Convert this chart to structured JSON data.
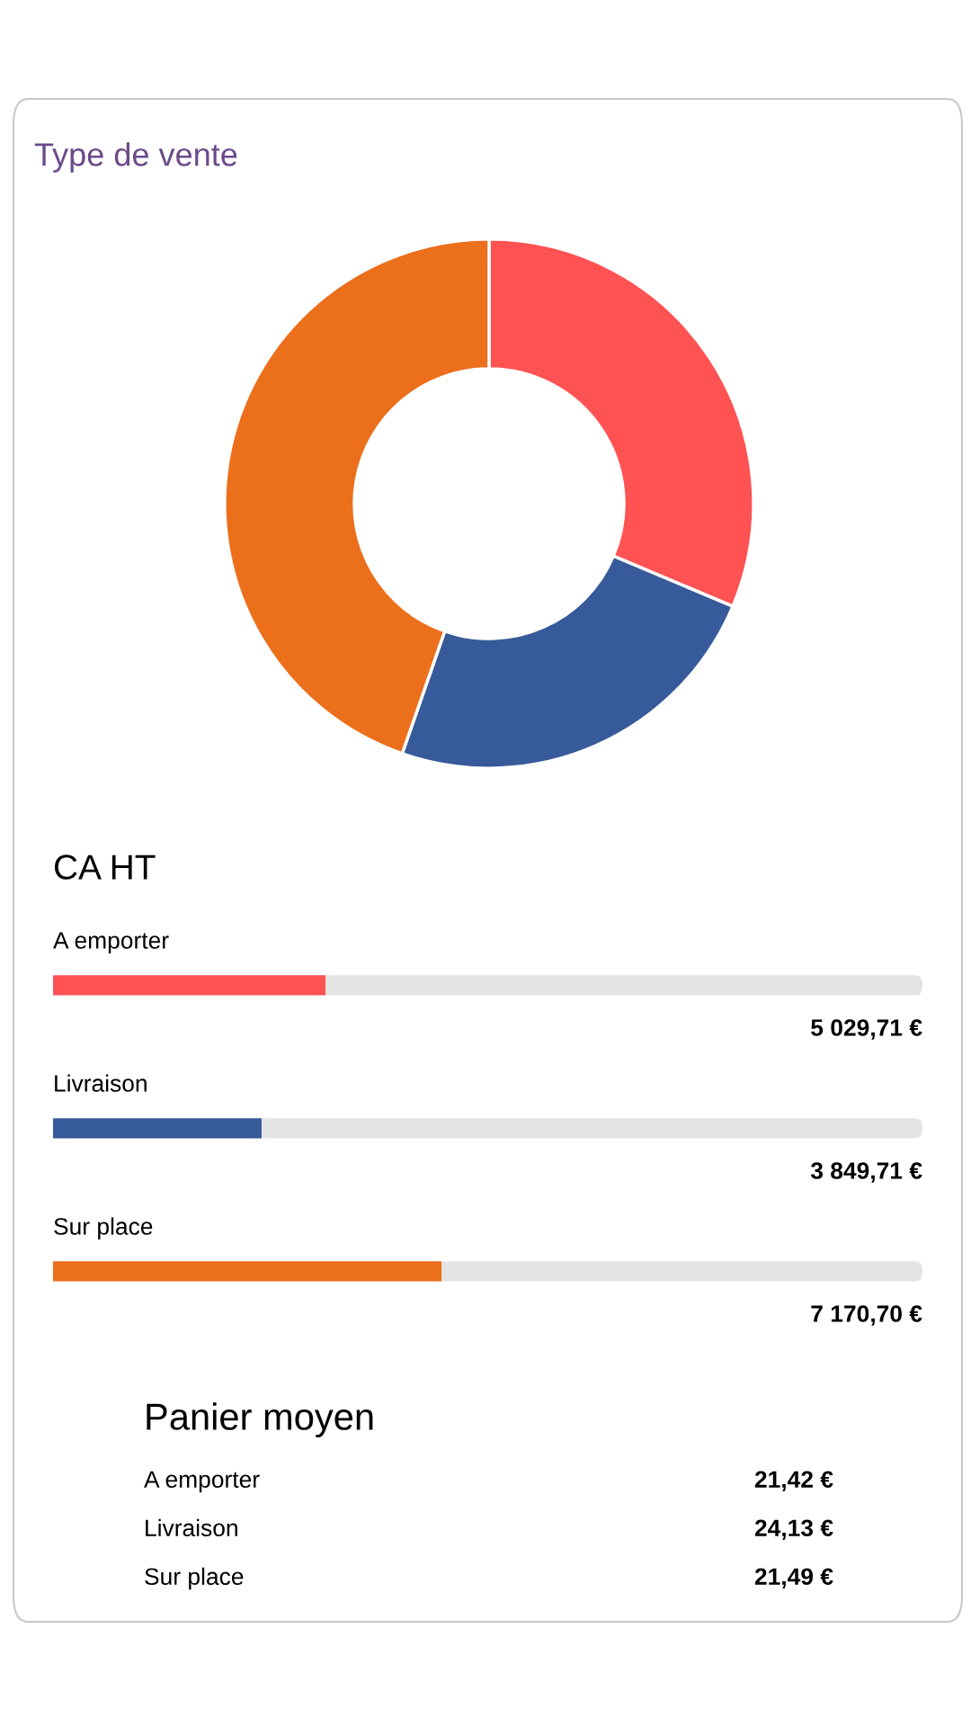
{
  "chart_data": [
    {
      "type": "donut",
      "title": "Type de vente",
      "categories": [
        null,
        null,
        null
      ],
      "values": [
        31.34,
        23.99,
        44.67
      ],
      "colors": [
        "#ff5252",
        "#375a9a",
        "#ec6f1c"
      ],
      "legend": false
    },
    {
      "type": "bar",
      "orientation": "horizontal",
      "title": "CA HT",
      "categories": [
        "A emporter",
        "Livraison",
        "Sur place"
      ],
      "values": [
        5029.71,
        3849.71,
        7170.7
      ],
      "colors": [
        "#ff5252",
        "#375a9a",
        "#ec6f1c"
      ],
      "value_labels": [
        "5 029,71 €",
        "3 849,71 €",
        "7 170,70 €"
      ]
    },
    {
      "type": "other",
      "title": "Panier moyen",
      "categories": [
        "A emporter",
        "Livraison",
        "Sur place"
      ],
      "value_labels": [
        "21,42 €",
        "24,13 €",
        "21,49 €"
      ]
    }
  ]
}
